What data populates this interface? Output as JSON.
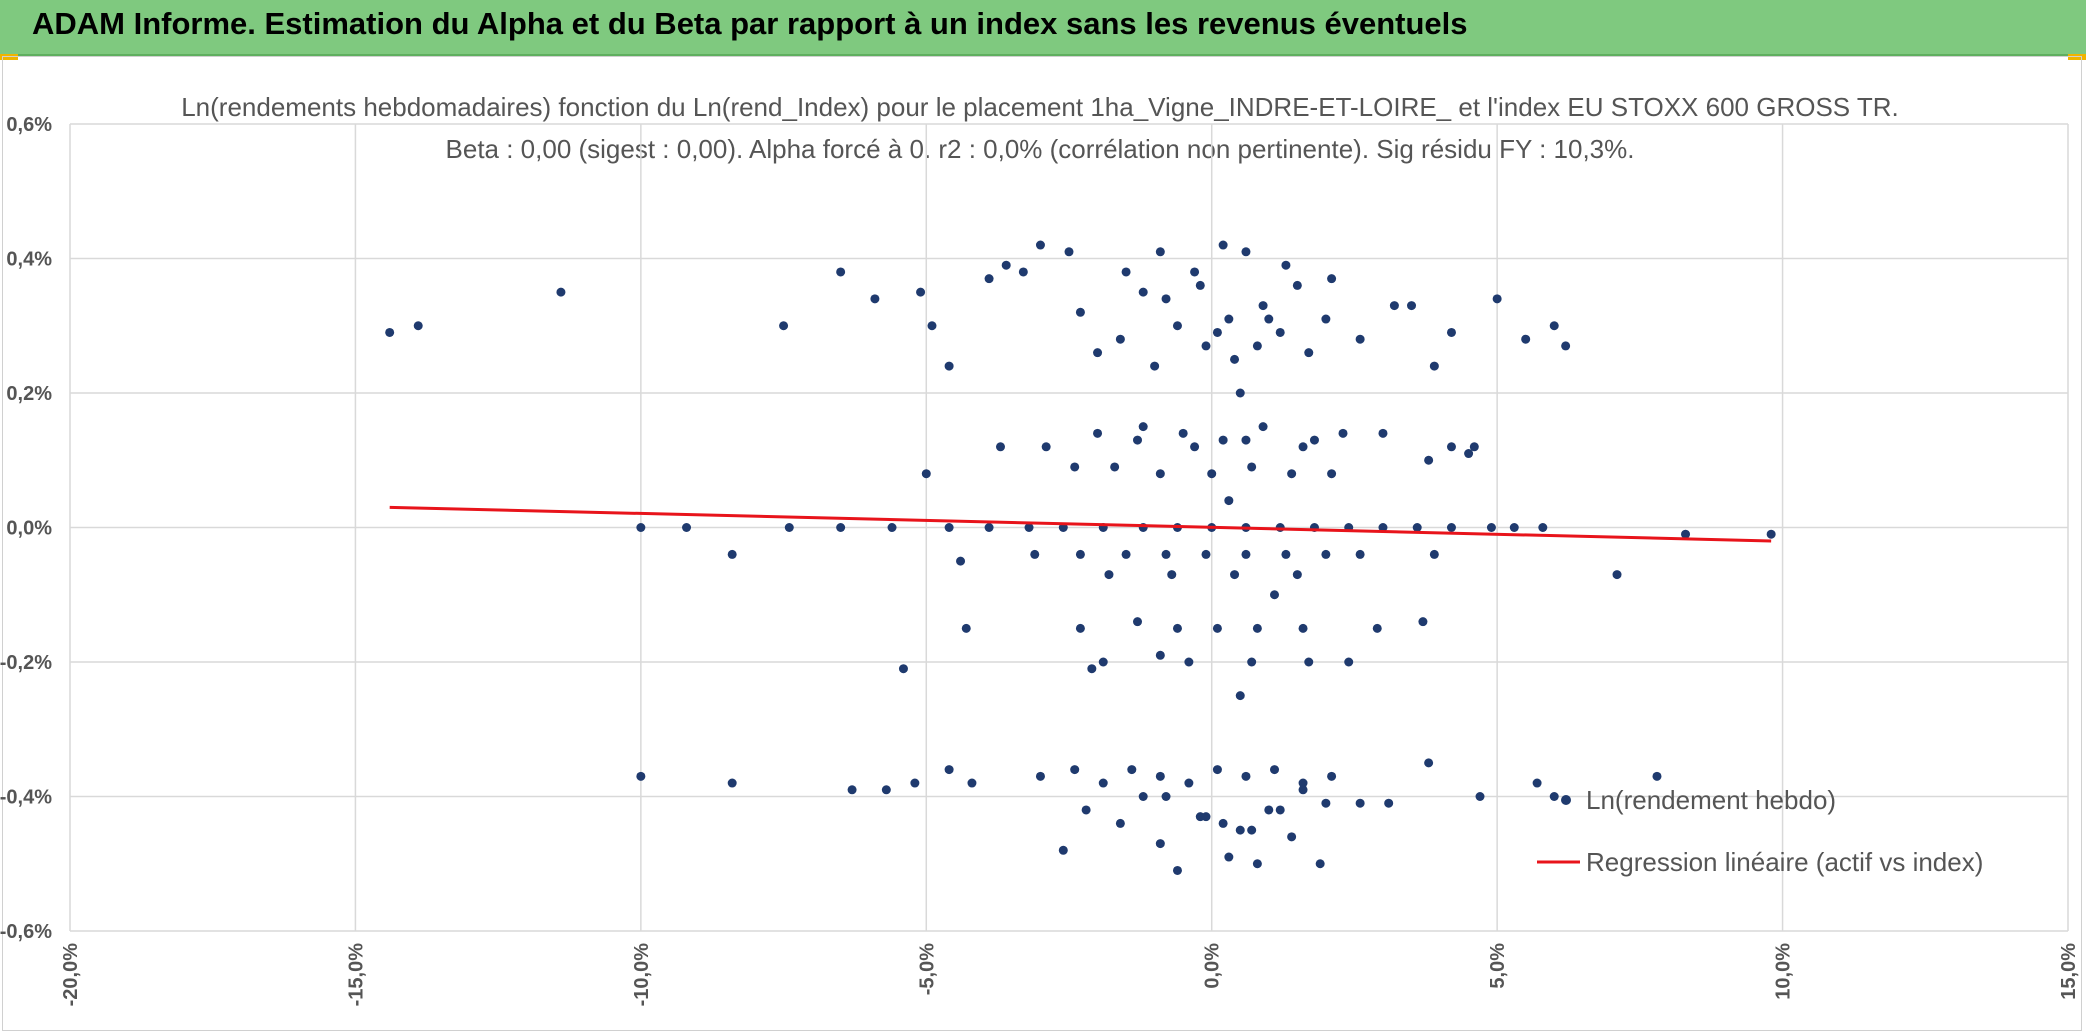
{
  "header": {
    "title": "ADAM Informe. Estimation du Alpha et du Beta par rapport à un index sans les revenus éventuels"
  },
  "colors": {
    "header_bg": "#7fc97f",
    "points": "#1f3a6e",
    "regression": "#e8141b",
    "grid": "#d9d9d9",
    "text": "#555555"
  },
  "chart_data": {
    "type": "scatter",
    "title_line1": "Ln(rendements hebdomadaires) fonction du Ln(rend_Index) pour le placement 1ha_Vigne_INDRE-ET-LOIRE_ et l'index EU STOXX 600 GROSS TR.",
    "title_line2": "Beta : 0,00 (sigest : 0,00). Alpha forcé à 0. r2 : 0,0% (corrélation non pertinente). Sig résidu FY : 10,3%.",
    "xlabel": "",
    "ylabel": "",
    "xlim": [
      -20,
      15
    ],
    "ylim": [
      -0.6,
      0.6
    ],
    "x_ticks": [
      -20,
      -15,
      -10,
      -5,
      0,
      5,
      10,
      15
    ],
    "x_tick_labels": [
      "-20,0%",
      "-15,0%",
      "-10,0%",
      "-5,0%",
      "0,0%",
      "5,0%",
      "10,0%",
      "15,0%"
    ],
    "y_ticks": [
      0.6,
      0.4,
      0.2,
      0.0,
      -0.2,
      -0.4,
      -0.6
    ],
    "y_tick_labels": [
      "0,6%",
      "0,4%",
      "0,2%",
      "0,0%",
      "-0,2%",
      "-0,4%",
      "-0,6%"
    ],
    "grid": true,
    "legend_position": "bottom-right",
    "series": [
      {
        "name": "Ln(rendement hebdo)",
        "kind": "scatter",
        "x": [
          -14.4,
          -13.9,
          -11.4,
          -7.5,
          -6.5,
          -5.9,
          -5.1,
          -4.9,
          -4.6,
          -3.3,
          -2.5,
          -1.5,
          -0.9,
          -0.3,
          0.2,
          0.6,
          1.3,
          2.1,
          3.2,
          4.2,
          5.0,
          5.5,
          6.0,
          6.2,
          -3.9,
          -3.6,
          -3.0,
          -2.3,
          -1.6,
          -1.2,
          -0.6,
          -0.1,
          0.4,
          0.9,
          1.5,
          2.0,
          2.6,
          3.5,
          3.9,
          -2.0,
          -0.8,
          0.1,
          1.0,
          1.7,
          -1.0,
          0.3,
          0.8,
          -0.2,
          0.5,
          1.2,
          -3.7,
          -2.9,
          -2.0,
          -1.2,
          -0.5,
          0.2,
          0.9,
          1.6,
          2.3,
          3.0,
          3.8,
          4.2,
          4.6,
          -2.4,
          -1.7,
          -0.9,
          0.0,
          0.7,
          1.4,
          2.1,
          -1.3,
          -0.3,
          0.6,
          1.8,
          -5.0,
          4.5,
          -10.0,
          -9.2,
          -8.4,
          -7.4,
          -6.5,
          -5.6,
          -4.6,
          -3.9,
          -3.2,
          -2.6,
          -1.9,
          -1.2,
          -0.6,
          0.0,
          0.6,
          1.2,
          1.8,
          2.4,
          3.0,
          3.6,
          4.2,
          4.9,
          5.3,
          5.8,
          8.3,
          9.8,
          0.3,
          -4.4,
          -3.1,
          -2.3,
          -1.5,
          -0.8,
          -0.1,
          0.6,
          1.3,
          2.0,
          2.6,
          3.9,
          -1.8,
          -0.7,
          0.4,
          1.5,
          7.1,
          -4.3,
          -2.3,
          -1.3,
          -0.6,
          0.1,
          0.8,
          1.6,
          2.9,
          3.7,
          -1.9,
          -0.4,
          0.7,
          1.7,
          -5.4,
          2.4,
          0.5,
          -2.1,
          -0.9,
          1.1,
          -10.0,
          -8.4,
          -6.3,
          -5.7,
          -5.2,
          -4.6,
          -4.2,
          -3.0,
          -2.4,
          -1.9,
          -1.4,
          -0.9,
          -0.4,
          0.1,
          0.6,
          1.1,
          1.6,
          2.1,
          2.6,
          3.1,
          3.8,
          4.7,
          5.7,
          6.0,
          7.8,
          -2.6,
          -1.6,
          -0.9,
          -0.2,
          0.3,
          0.8,
          1.4,
          1.9,
          -0.6,
          0.5,
          1.0,
          -1.2,
          -0.1,
          0.7,
          1.2,
          2.0,
          -2.2,
          -0.8,
          0.2,
          1.6
        ],
        "y": [
          0.29,
          0.3,
          0.35,
          0.3,
          0.38,
          0.34,
          0.35,
          0.3,
          0.24,
          0.38,
          0.41,
          0.38,
          0.41,
          0.38,
          0.42,
          0.41,
          0.39,
          0.37,
          0.33,
          0.29,
          0.34,
          0.28,
          0.3,
          0.27,
          0.37,
          0.39,
          0.42,
          0.32,
          0.28,
          0.35,
          0.3,
          0.27,
          0.25,
          0.33,
          0.36,
          0.31,
          0.28,
          0.33,
          0.24,
          0.26,
          0.34,
          0.29,
          0.31,
          0.26,
          0.24,
          0.31,
          0.27,
          0.36,
          0.2,
          0.29,
          0.12,
          0.12,
          0.14,
          0.15,
          0.14,
          0.13,
          0.15,
          0.12,
          0.14,
          0.14,
          0.1,
          0.12,
          0.12,
          0.09,
          0.09,
          0.08,
          0.08,
          0.09,
          0.08,
          0.08,
          0.13,
          0.12,
          0.13,
          0.13,
          0.08,
          0.11,
          0.0,
          0.0,
          -0.04,
          0.0,
          0.0,
          0.0,
          0.0,
          0.0,
          0.0,
          0.0,
          0.0,
          0.0,
          0.0,
          0.0,
          0.0,
          0.0,
          0.0,
          0.0,
          0.0,
          0.0,
          0.0,
          0.0,
          0.0,
          0.0,
          -0.01,
          -0.01,
          0.04,
          -0.05,
          -0.04,
          -0.04,
          -0.04,
          -0.04,
          -0.04,
          -0.04,
          -0.04,
          -0.04,
          -0.04,
          -0.04,
          -0.07,
          -0.07,
          -0.07,
          -0.07,
          -0.07,
          -0.15,
          -0.15,
          -0.14,
          -0.15,
          -0.15,
          -0.15,
          -0.15,
          -0.15,
          -0.14,
          -0.2,
          -0.2,
          -0.2,
          -0.2,
          -0.21,
          -0.2,
          -0.25,
          -0.21,
          -0.19,
          -0.1,
          -0.37,
          -0.38,
          -0.39,
          -0.39,
          -0.38,
          -0.36,
          -0.38,
          -0.37,
          -0.36,
          -0.38,
          -0.36,
          -0.37,
          -0.38,
          -0.36,
          -0.37,
          -0.36,
          -0.38,
          -0.37,
          -0.41,
          -0.41,
          -0.35,
          -0.4,
          -0.38,
          -0.4,
          -0.37,
          -0.48,
          -0.44,
          -0.47,
          -0.43,
          -0.49,
          -0.5,
          -0.46,
          -0.5,
          -0.51,
          -0.45,
          -0.42,
          -0.4,
          -0.43,
          -0.45,
          -0.42,
          -0.41,
          -0.42,
          -0.4,
          -0.44,
          -0.39
        ]
      },
      {
        "name": "Regression linéaire (actif vs index)",
        "kind": "line",
        "x": [
          -14.4,
          9.8
        ],
        "y": [
          0.03,
          -0.02
        ]
      }
    ]
  }
}
